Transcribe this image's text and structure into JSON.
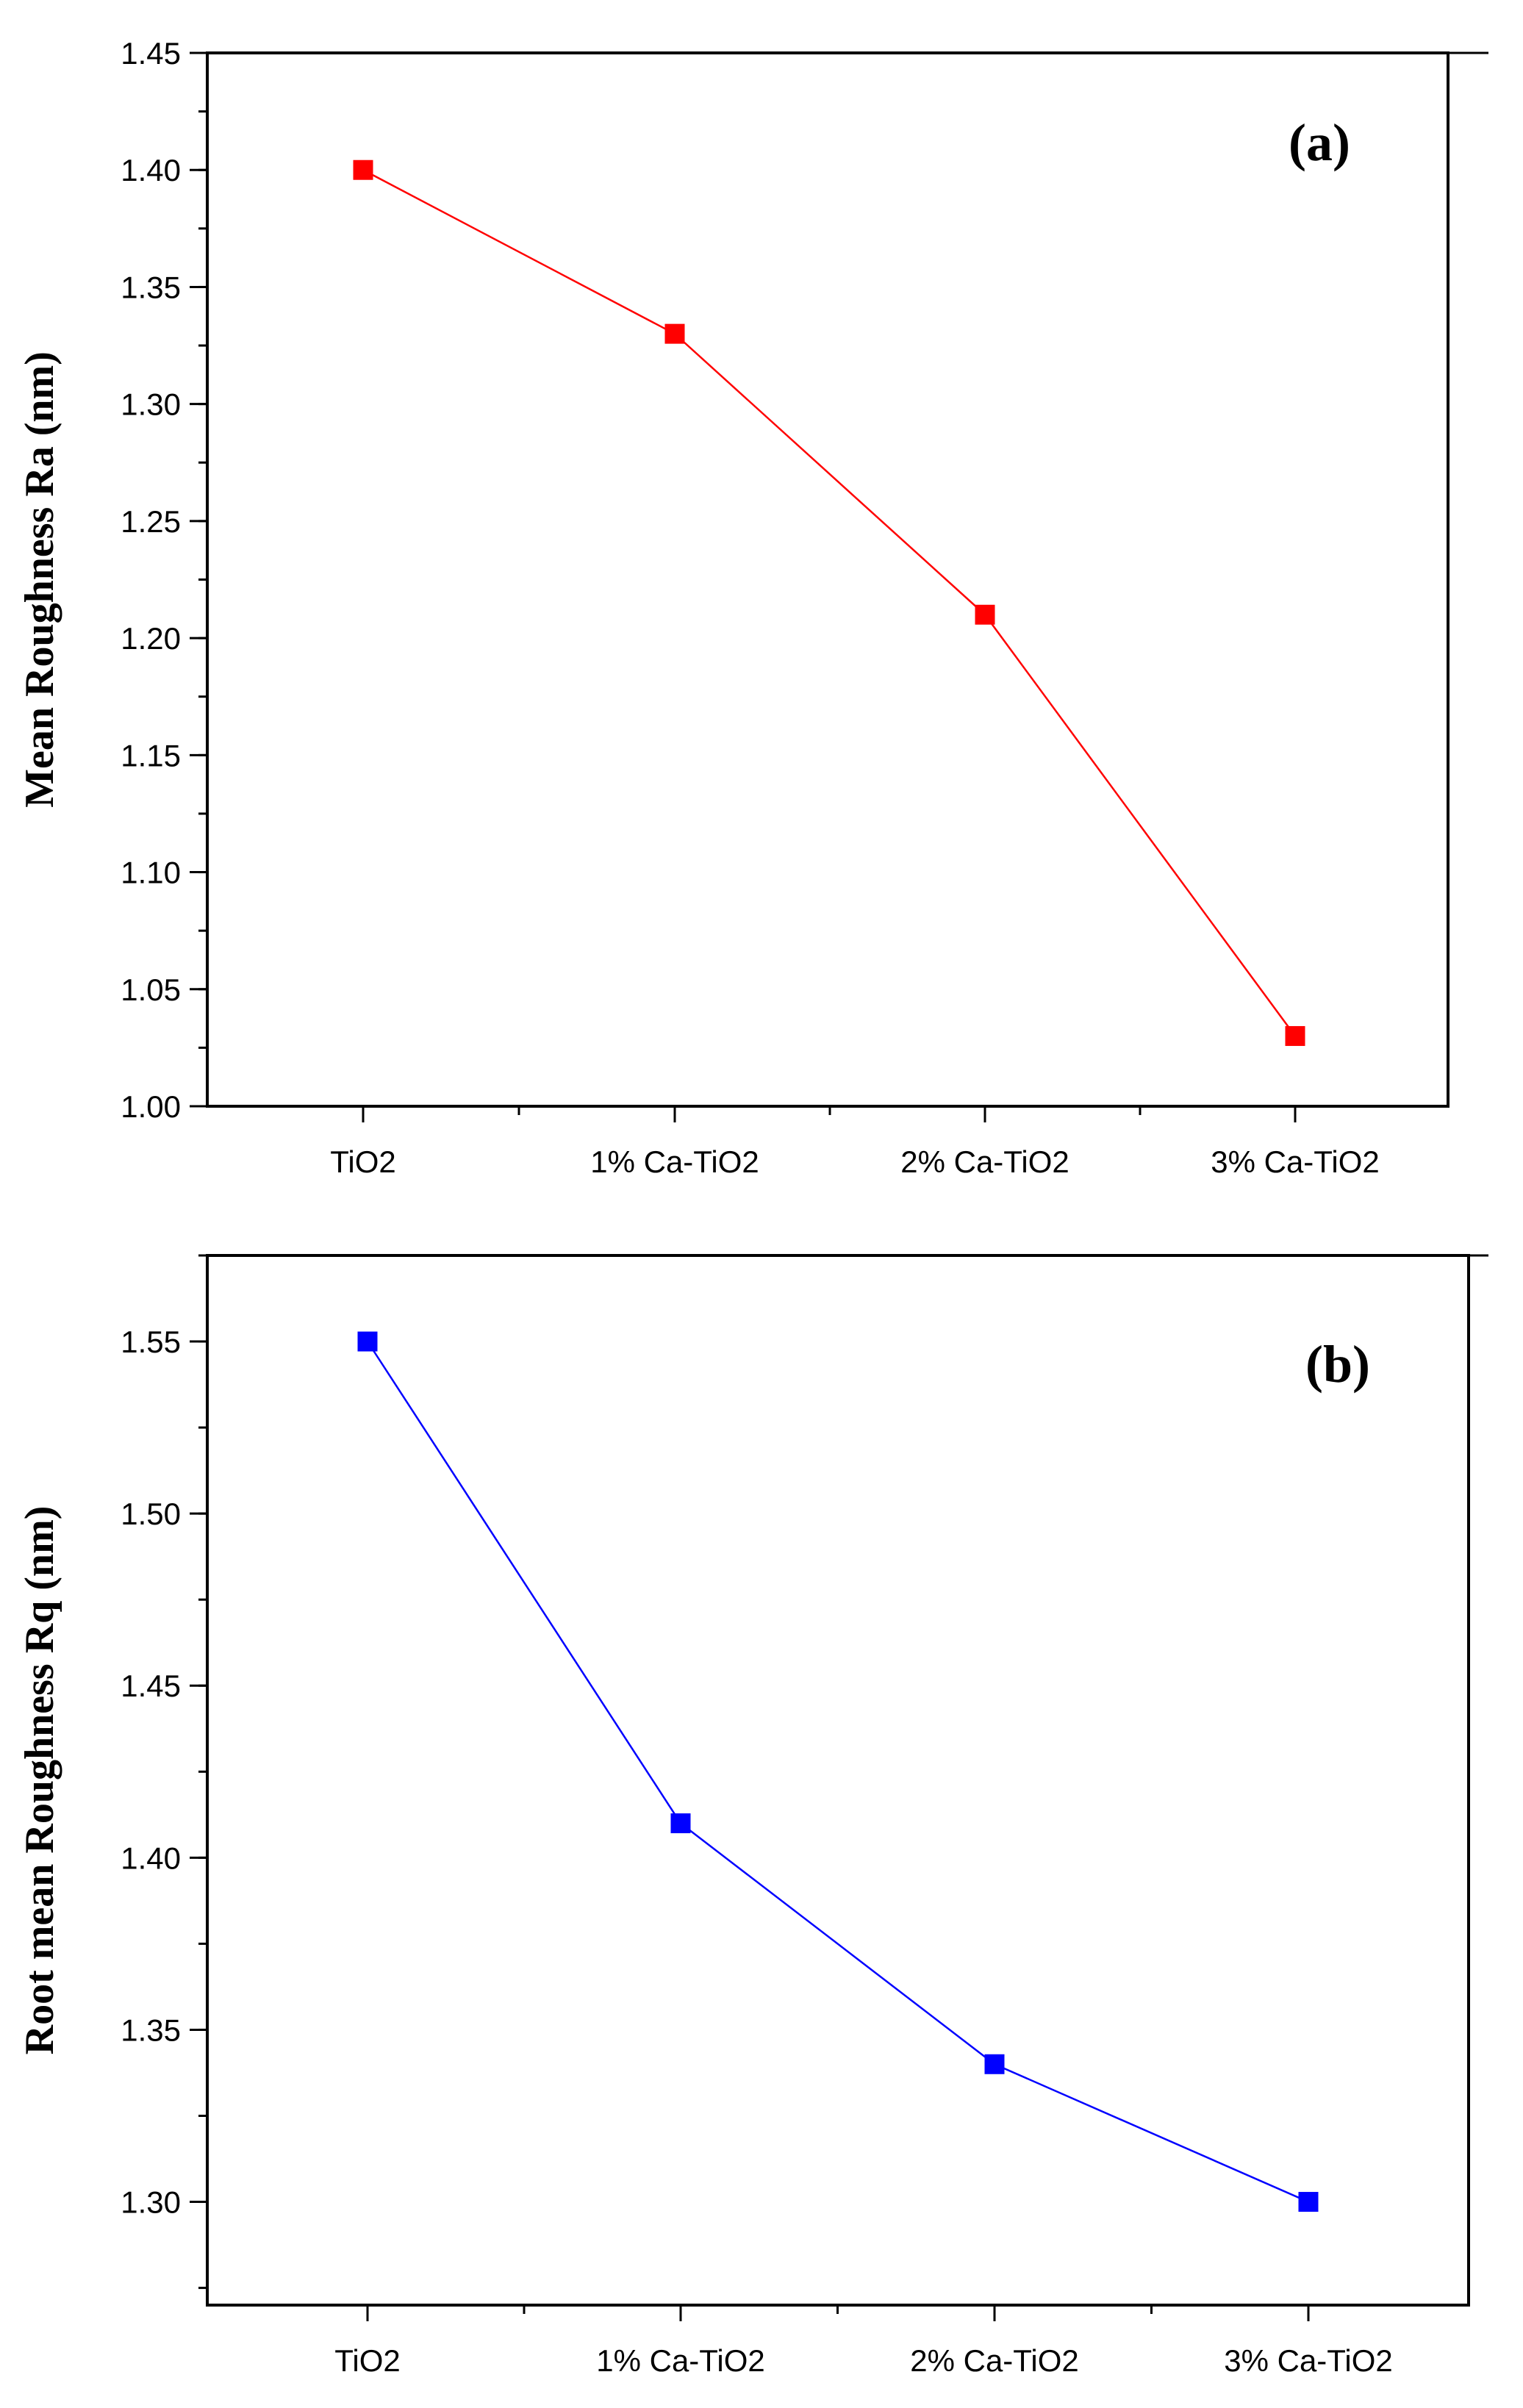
{
  "chart_data": [
    {
      "type": "line",
      "panel_label": "(a)",
      "title": "",
      "xlabel": "",
      "ylabel": "Mean Roughness Ra (nm)",
      "categories": [
        "TiO2",
        "1% Ca-TiO2",
        "2% Ca-TiO2",
        "3% Ca-TiO2"
      ],
      "series": [
        {
          "name": "Ra",
          "color": "#ff0000",
          "marker": "square",
          "values": [
            1.4,
            1.33,
            1.21,
            1.03
          ]
        }
      ],
      "ylim": [
        1.0,
        1.45
      ],
      "yticks": [
        1.0,
        1.05,
        1.1,
        1.15,
        1.2,
        1.25,
        1.3,
        1.35,
        1.4,
        1.45
      ],
      "ytick_labels": [
        "1.00",
        "1.05",
        "1.10",
        "1.15",
        "1.20",
        "1.25",
        "1.30",
        "1.35",
        "1.40",
        "1.45"
      ],
      "grid": false,
      "legend": "none"
    },
    {
      "type": "line",
      "panel_label": "(b)",
      "title": "",
      "xlabel": "",
      "ylabel": "Root mean Roughness Rq (nm)",
      "categories": [
        "TiO2",
        "1% Ca-TiO2",
        "2% Ca-TiO2",
        "3% Ca-TiO2"
      ],
      "series": [
        {
          "name": "Rq",
          "color": "#0000ff",
          "marker": "square",
          "values": [
            1.55,
            1.41,
            1.34,
            1.3
          ]
        }
      ],
      "ylim": [
        1.27,
        1.575
      ],
      "yticks": [
        1.3,
        1.35,
        1.4,
        1.45,
        1.5,
        1.55
      ],
      "ytick_labels": [
        "1.30",
        "1.35",
        "1.40",
        "1.45",
        "1.50",
        "1.55"
      ],
      "grid": false,
      "legend": "none"
    }
  ]
}
